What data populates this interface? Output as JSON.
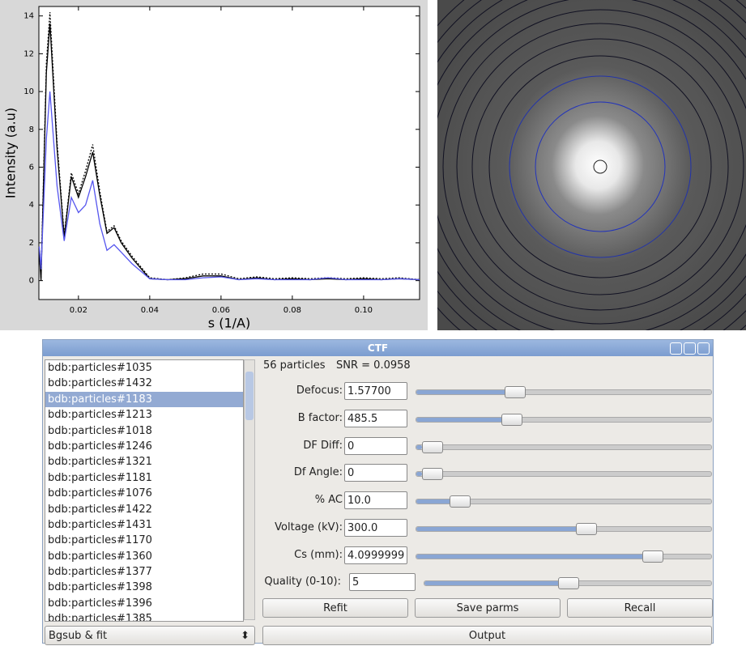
{
  "chart_data": {
    "type": "line",
    "x_label": "s (1/A)",
    "y_label": "Intensity (a.u)",
    "x": [
      0.009,
      0.0095,
      0.011,
      0.012,
      0.014,
      0.016,
      0.018,
      0.02,
      0.022,
      0.024,
      0.026,
      0.028,
      0.03,
      0.032,
      0.035,
      0.04,
      0.045,
      0.05,
      0.055,
      0.06,
      0.065,
      0.07,
      0.075,
      0.08,
      0.085,
      0.09,
      0.095,
      0.1,
      0.105,
      0.11,
      0.1157
    ],
    "series": [
      {
        "color": "#000000",
        "dash": "2,2",
        "values": [
          1.6,
          0.1,
          11.5,
          14.2,
          7.3,
          2.4,
          5.7,
          4.6,
          5.8,
          7.2,
          4.7,
          2.6,
          2.9,
          2.1,
          1.3,
          0.15,
          0.05,
          0.15,
          0.35,
          0.35,
          0.1,
          0.2,
          0.1,
          0.15,
          0.1,
          0.15,
          0.1,
          0.15,
          0.1,
          0.15,
          0.05
        ]
      },
      {
        "color": "#000000",
        "values": [
          1.5,
          0,
          11,
          13.6,
          7,
          2.3,
          5.5,
          4.4,
          5.5,
          6.8,
          4.5,
          2.5,
          2.8,
          2,
          1.2,
          0.1,
          0.05,
          0.1,
          0.25,
          0.25,
          0.05,
          0.15,
          0.05,
          0.1,
          0.05,
          0.1,
          0.05,
          0.1,
          0.05,
          0.1,
          0.05
        ]
      },
      {
        "color": "#5555ee",
        "values": [
          1.8,
          0.6,
          7.5,
          10,
          5,
          2.1,
          4.4,
          3.6,
          4,
          5.3,
          3,
          1.6,
          1.9,
          1.5,
          0.9,
          0.1,
          0.05,
          0.05,
          0.15,
          0.2,
          0.05,
          0.1,
          0.05,
          0.05,
          0.05,
          0.15,
          0.05,
          0.05,
          0.05,
          0.1,
          0.05
        ]
      }
    ],
    "xlim": [
      0.0089,
      0.1157
    ],
    "xticks": [
      0.02,
      0.04,
      0.06,
      0.08,
      {
        "value": 0.1,
        "label": "0.10"
      }
    ],
    "ylim": [
      -1,
      14.5
    ],
    "yticks": [
      0,
      2,
      4,
      6,
      8,
      10,
      12,
      14
    ]
  },
  "dialog": {
    "title": "CTF",
    "particles": [
      "bdb:particles#1035",
      "bdb:particles#1432",
      "bdb:particles#1183",
      "bdb:particles#1213",
      "bdb:particles#1018",
      "bdb:particles#1246",
      "bdb:particles#1321",
      "bdb:particles#1181",
      "bdb:particles#1076",
      "bdb:particles#1422",
      "bdb:particles#1431",
      "bdb:particles#1170",
      "bdb:particles#1360",
      "bdb:particles#1377",
      "bdb:particles#1398",
      "bdb:particles#1396",
      "bdb:particles#1385"
    ],
    "count": "56 particles",
    "snr": "SNR = 0.0958",
    "fields": [
      {
        "label": "Defocus:",
        "value": "1.57700"
      },
      {
        "label": "B factor:",
        "value": "485.5"
      },
      {
        "label": "DF Diff:",
        "value": "0"
      },
      {
        "label": "Df Angle:",
        "value": "0"
      },
      {
        "label": "% AC",
        "value": "10.0"
      },
      {
        "label": "Voltage (kV):",
        "value": "300.0"
      },
      {
        "label": "Cs (mm):",
        "value": "4.0999999"
      },
      {
        "label": "Quality (0-10):",
        "value": "5"
      }
    ],
    "buttons": [
      "Refit",
      "Save parms",
      "Recall"
    ],
    "mode": "Bgsub & fit",
    "output": "Output"
  }
}
